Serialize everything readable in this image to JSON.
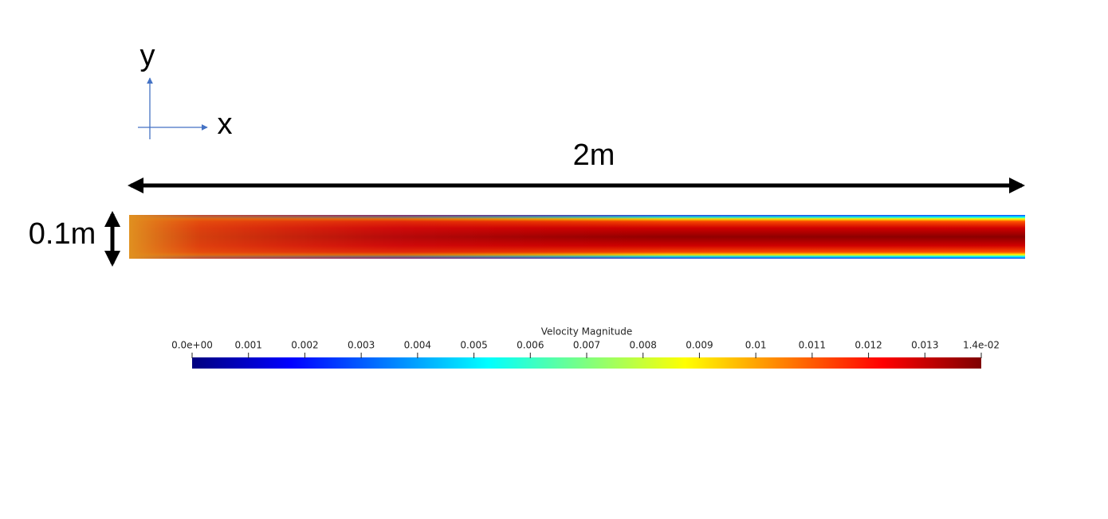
{
  "axes": {
    "y_label": "y",
    "x_label": "x"
  },
  "dimensions": {
    "length": "2m",
    "height": "0.1m"
  },
  "colorbar": {
    "title": "Velocity Magnitude",
    "range": [
      0,
      0.014
    ],
    "ticks": [
      {
        "value": 0,
        "label": "0.0e+00"
      },
      0.001,
      0.002,
      0.003,
      0.004,
      0.005,
      0.006,
      0.007,
      0.008,
      0.009,
      0.01,
      0.011,
      0.012,
      0.013,
      {
        "value": 0.014,
        "label": "1.4e-02"
      }
    ],
    "colormap": [
      "#00007f",
      "#0000ff",
      "#007fff",
      "#00ffff",
      "#7fff7f",
      "#ffff00",
      "#ff7f00",
      "#ff0000",
      "#7f0000"
    ]
  }
}
